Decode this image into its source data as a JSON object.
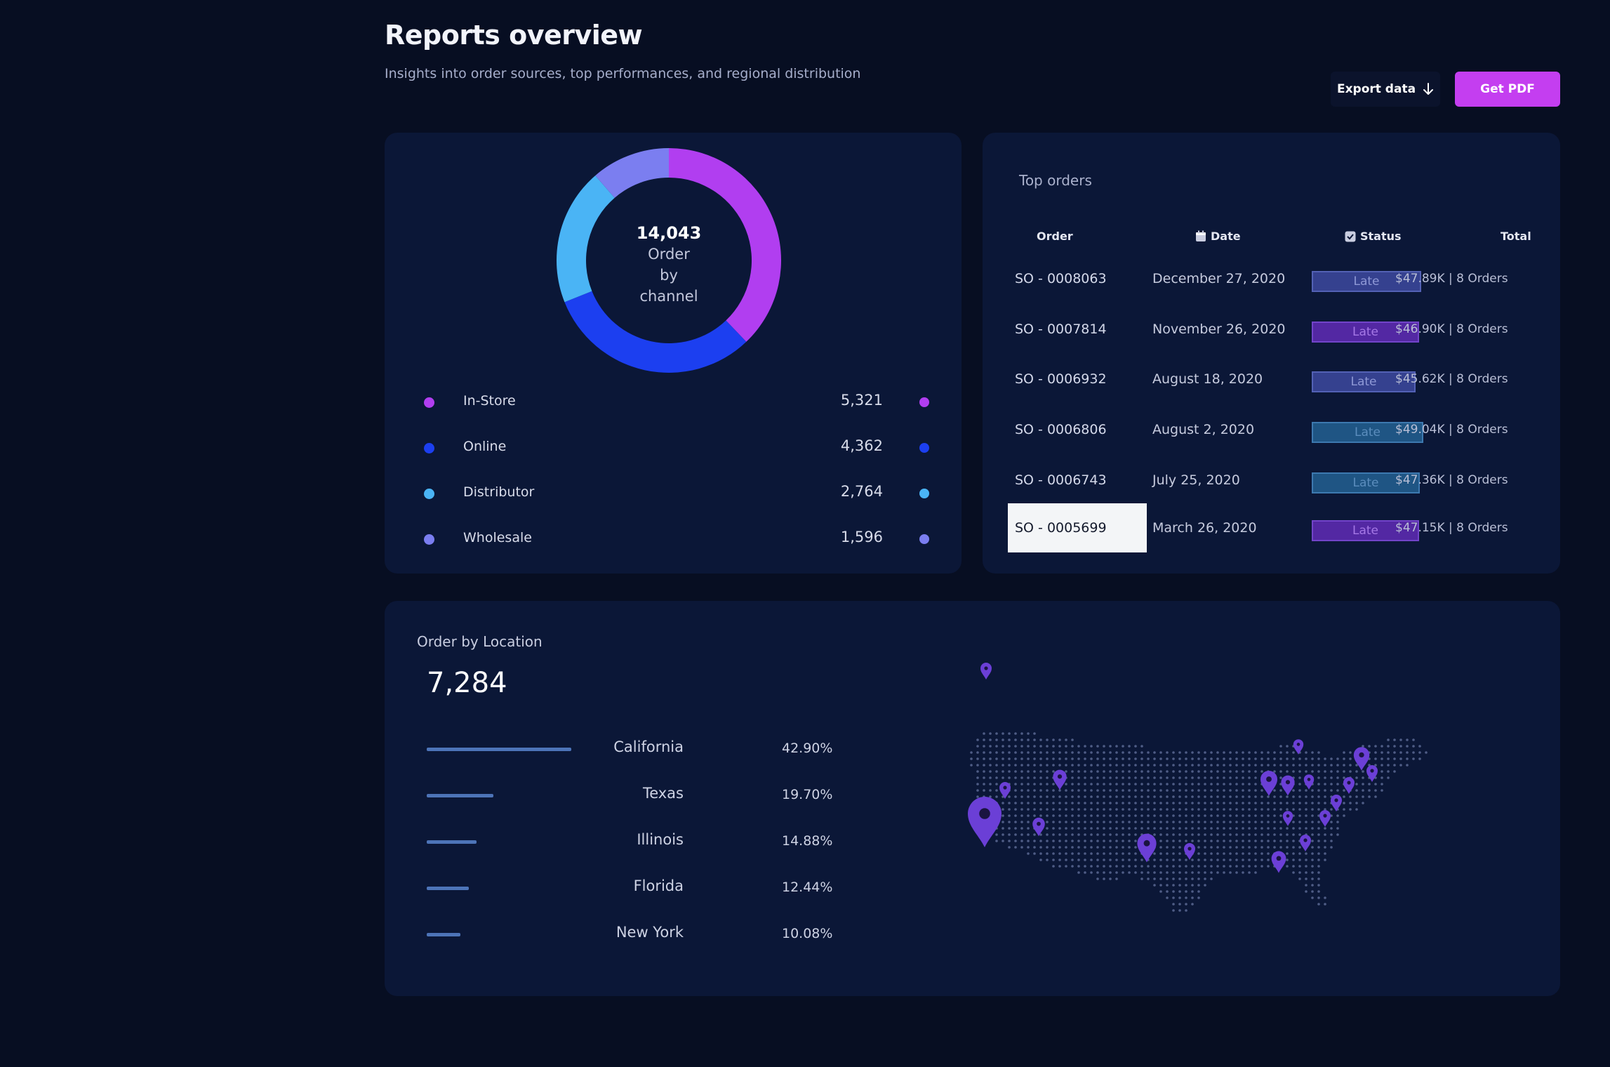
{
  "header": {
    "title": "Reports overview",
    "subtitle": "Insights into order sources, top performances, and regional distribution",
    "export_label": "Export data",
    "export_icon": "arrow-down-icon",
    "pdf_label": "Get PDF"
  },
  "colors": {
    "background": "#070e22",
    "card": "#0b1737",
    "accent": "#c43ef0"
  },
  "channels": {
    "total": "14,043",
    "center_label_lines": [
      "Order",
      "by",
      "channel"
    ],
    "items": [
      {
        "name": "In-Store",
        "value": "5,321",
        "amount": 5321,
        "color": "#b13ef0"
      },
      {
        "name": "Online",
        "value": "4,362",
        "amount": 4362,
        "color": "#1c3ff0"
      },
      {
        "name": "Distributor",
        "value": "2,764",
        "amount": 2764,
        "color": "#4ab4f5"
      },
      {
        "name": "Wholesale",
        "value": "1,596",
        "amount": 1596,
        "color": "#7b7ef0"
      }
    ]
  },
  "orders": {
    "title": "Top orders",
    "columns": {
      "order": "Order",
      "date": "Date",
      "status": "Status",
      "total": "Total"
    },
    "column_icons": {
      "date": "calendar-icon",
      "status": "checkbox-icon"
    },
    "rows": [
      {
        "id": "SO - 0008063",
        "date": "December 27, 2020",
        "status": "Late",
        "total": "$47.89K | 8 Orders",
        "status_bg": "#35418f",
        "status_border": "#5361b5",
        "status_color": "#8e98d6"
      },
      {
        "id": "SO - 0007814",
        "date": "November 26, 2020",
        "status": "Late",
        "total": "$46.90K | 8 Orders",
        "status_bg": "#5328a3",
        "status_border": "#7244c9",
        "status_color": "#a578e6"
      },
      {
        "id": "SO - 0006932",
        "date": "August 18, 2020",
        "status": "Late",
        "total": "$45.62K | 8 Orders",
        "status_bg": "#35418f",
        "status_border": "#5361b5",
        "status_color": "#8e98d6"
      },
      {
        "id": "SO - 0006806",
        "date": "August 2, 2020",
        "status": "Late",
        "total": "$49.04K | 8 Orders",
        "status_bg": "#1f5584",
        "status_border": "#3d79b0",
        "status_color": "#5b8dbd"
      },
      {
        "id": "SO - 0006743",
        "date": "July 25, 2020",
        "status": "Late",
        "total": "$47.36K | 8 Orders",
        "status_bg": "#1f5584",
        "status_border": "#3d79b0",
        "status_color": "#5b8dbd"
      },
      {
        "id": "SO - 0005699",
        "date": "March 26, 2020",
        "status": "Late",
        "total": "$47.15K | 8 Orders",
        "status_bg": "#5328a3",
        "status_border": "#7244c9",
        "status_color": "#a578e6"
      }
    ]
  },
  "location": {
    "title": "Order by Location",
    "total": "7,284",
    "items": [
      {
        "name": "California",
        "pct": "42.90%",
        "share": 0.429
      },
      {
        "name": "Texas",
        "pct": "19.70%",
        "share": 0.197
      },
      {
        "name": "Illinois",
        "pct": "14.88%",
        "share": 0.1488
      },
      {
        "name": "Florida",
        "pct": "12.44%",
        "share": 0.1244
      },
      {
        "name": "New York",
        "pct": "10.08%",
        "share": 0.1008
      }
    ],
    "map_icon": "us-map-icon",
    "pin_icon": "map-pin-icon"
  }
}
